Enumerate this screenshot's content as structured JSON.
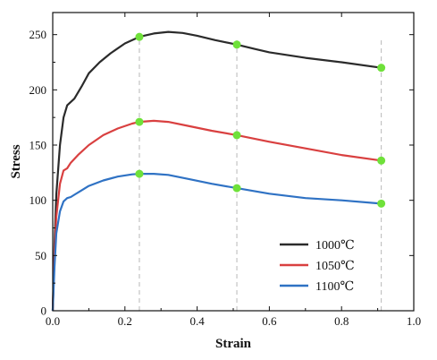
{
  "chart_data": {
    "type": "line",
    "title": "",
    "xlabel": "Strain",
    "ylabel": "Stress",
    "xlim": [
      0.0,
      1.0
    ],
    "ylim": [
      0,
      270
    ],
    "xticks": [
      "0.0",
      "0.2",
      "0.4",
      "0.6",
      "0.8",
      "1.0"
    ],
    "yticks": [
      "0",
      "50",
      "100",
      "150",
      "200",
      "250"
    ],
    "grid": false,
    "legend_position": "bottom-right",
    "series": [
      {
        "name": "1000℃",
        "color": "#2b2b2b",
        "points": [
          [
            0.0,
            0
          ],
          [
            0.005,
            60
          ],
          [
            0.01,
            105
          ],
          [
            0.02,
            150
          ],
          [
            0.03,
            175
          ],
          [
            0.04,
            186
          ],
          [
            0.06,
            192
          ],
          [
            0.08,
            203
          ],
          [
            0.1,
            215
          ],
          [
            0.13,
            225
          ],
          [
            0.16,
            233
          ],
          [
            0.2,
            242
          ],
          [
            0.24,
            248
          ],
          [
            0.28,
            251
          ],
          [
            0.32,
            252.5
          ],
          [
            0.36,
            251.5
          ],
          [
            0.4,
            249
          ],
          [
            0.45,
            245
          ],
          [
            0.51,
            241
          ],
          [
            0.56,
            237
          ],
          [
            0.6,
            234
          ],
          [
            0.7,
            229
          ],
          [
            0.8,
            225
          ],
          [
            0.91,
            220
          ]
        ]
      },
      {
        "name": "1050℃",
        "color": "#d94040",
        "points": [
          [
            0.0,
            0
          ],
          [
            0.005,
            50
          ],
          [
            0.01,
            85
          ],
          [
            0.02,
            115
          ],
          [
            0.03,
            127
          ],
          [
            0.04,
            129
          ],
          [
            0.05,
            134
          ],
          [
            0.07,
            141
          ],
          [
            0.1,
            150
          ],
          [
            0.14,
            159
          ],
          [
            0.18,
            165
          ],
          [
            0.22,
            169.5
          ],
          [
            0.24,
            171
          ],
          [
            0.28,
            172
          ],
          [
            0.32,
            171
          ],
          [
            0.38,
            167
          ],
          [
            0.44,
            163
          ],
          [
            0.51,
            159
          ],
          [
            0.6,
            153
          ],
          [
            0.7,
            147
          ],
          [
            0.8,
            141
          ],
          [
            0.91,
            136
          ]
        ]
      },
      {
        "name": "1100℃",
        "color": "#2f72c4",
        "points": [
          [
            0.0,
            0
          ],
          [
            0.005,
            40
          ],
          [
            0.01,
            70
          ],
          [
            0.02,
            90
          ],
          [
            0.03,
            99
          ],
          [
            0.04,
            102
          ],
          [
            0.05,
            103
          ],
          [
            0.06,
            105
          ],
          [
            0.08,
            109
          ],
          [
            0.1,
            113
          ],
          [
            0.14,
            118
          ],
          [
            0.18,
            121.5
          ],
          [
            0.22,
            123.5
          ],
          [
            0.24,
            124
          ],
          [
            0.28,
            124
          ],
          [
            0.32,
            123
          ],
          [
            0.38,
            119
          ],
          [
            0.44,
            115
          ],
          [
            0.51,
            111
          ],
          [
            0.6,
            106
          ],
          [
            0.7,
            102
          ],
          [
            0.8,
            100
          ],
          [
            0.91,
            97
          ]
        ]
      }
    ],
    "markers": {
      "color": "#6fe13a",
      "points": [
        [
          0.24,
          248
        ],
        [
          0.51,
          241
        ],
        [
          0.91,
          220
        ],
        [
          0.24,
          171
        ],
        [
          0.51,
          159
        ],
        [
          0.91,
          136
        ],
        [
          0.24,
          124
        ],
        [
          0.51,
          111
        ],
        [
          0.91,
          97
        ]
      ]
    },
    "reference_lines_x": [
      0.24,
      0.51,
      0.91
    ]
  }
}
